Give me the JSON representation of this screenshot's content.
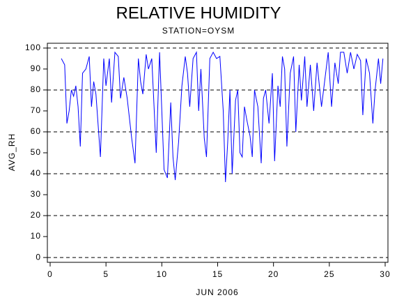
{
  "chart_data": {
    "type": "line",
    "title": "RELATIVE HUMIDITY",
    "subtitle": "STATION=OYSM",
    "x_label": "JUN 2006",
    "y_label": "AVG_RH",
    "xlim": [
      -0.25,
      30.25
    ],
    "xticks": [
      0,
      5,
      10,
      15,
      20,
      25,
      30
    ],
    "ylim": [
      -2.3,
      102.3
    ],
    "yticks": [
      0,
      10,
      20,
      30,
      40,
      50,
      60,
      70,
      80,
      90,
      100
    ],
    "grid_values": [
      0,
      20,
      40,
      60,
      80,
      100
    ],
    "series": [
      {
        "name": "AVG_RH",
        "color": "#0000ff",
        "x": [
          1.0,
          1.3,
          1.5,
          1.7,
          1.9,
          2.1,
          2.3,
          2.5,
          2.7,
          2.9,
          3.2,
          3.5,
          3.7,
          3.9,
          4.1,
          4.5,
          4.8,
          5.0,
          5.3,
          5.5,
          5.8,
          6.1,
          6.3,
          6.6,
          6.9,
          7.3,
          7.6,
          7.9,
          8.1,
          8.3,
          8.6,
          8.8,
          9.1,
          9.5,
          9.8,
          10.0,
          10.2,
          10.5,
          10.8,
          11.0,
          11.2,
          11.5,
          11.8,
          12.1,
          12.3,
          12.5,
          12.8,
          13.1,
          13.3,
          13.5,
          13.8,
          14.0,
          14.3,
          14.6,
          14.9,
          15.2,
          15.5,
          15.7,
          15.9,
          16.1,
          16.3,
          16.6,
          16.8,
          17.0,
          17.2,
          17.4,
          17.6,
          17.9,
          18.1,
          18.3,
          18.6,
          18.9,
          19.1,
          19.3,
          19.6,
          19.9,
          20.1,
          20.4,
          20.6,
          20.8,
          21.0,
          21.2,
          21.5,
          21.8,
          22.0,
          22.3,
          22.5,
          22.8,
          23.0,
          23.3,
          23.6,
          23.9,
          24.3,
          24.6,
          24.9,
          25.2,
          25.5,
          25.8,
          26.0,
          26.3,
          26.6,
          26.9,
          27.2,
          27.5,
          27.8,
          28.0,
          28.3,
          28.6,
          28.9,
          29.1,
          29.4,
          29.6,
          29.8
        ],
        "values": [
          95,
          92,
          64,
          70,
          80,
          77,
          82,
          72,
          53,
          88,
          90,
          96,
          72,
          84,
          78,
          48,
          95,
          82,
          95,
          74,
          98,
          96,
          76,
          86,
          76,
          57,
          45,
          95,
          84,
          78,
          97,
          90,
          95,
          50,
          98,
          70,
          42,
          38,
          74,
          48,
          37,
          55,
          82,
          96,
          88,
          72,
          95,
          98,
          70,
          90,
          57,
          48,
          95,
          98,
          95,
          96,
          70,
          36,
          55,
          80,
          40,
          75,
          80,
          50,
          48,
          72,
          66,
          58,
          48,
          80,
          72,
          45,
          76,
          80,
          64,
          88,
          46,
          82,
          72,
          96,
          90,
          53,
          88,
          96,
          60,
          92,
          75,
          96,
          72,
          92,
          70,
          93,
          72,
          85,
          98,
          72,
          93,
          83,
          98,
          98,
          88,
          98,
          90,
          97,
          94,
          68,
          95,
          88,
          64,
          80,
          95,
          83,
          95
        ]
      }
    ]
  }
}
